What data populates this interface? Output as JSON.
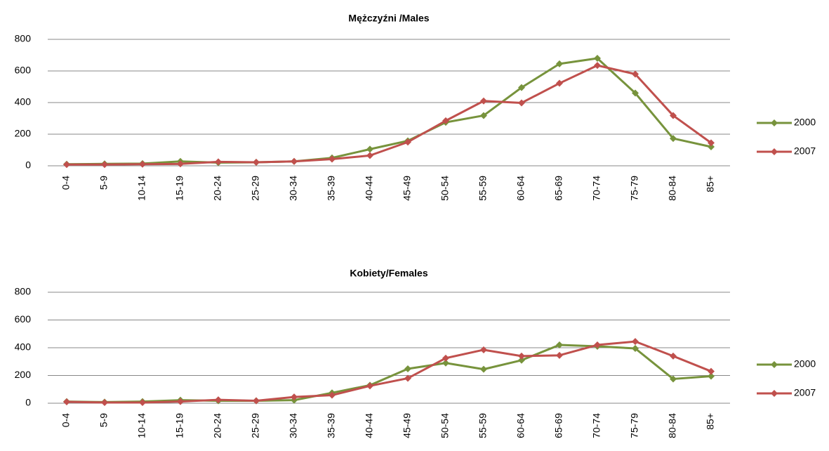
{
  "chart_data": [
    {
      "type": "line",
      "title": "Mężczyźni /Males",
      "categories": [
        "0-4",
        "5-9",
        "10-14",
        "15-19",
        "20-24",
        "25-29",
        "30-34",
        "35-39",
        "40-44",
        "45-49",
        "50-54",
        "55-59",
        "60-64",
        "65-69",
        "70-74",
        "75-79",
        "80-84",
        "85+"
      ],
      "series": [
        {
          "name": "2000",
          "color": "#77933c",
          "values": [
            10,
            12,
            14,
            28,
            20,
            22,
            28,
            50,
            105,
            158,
            275,
            318,
            495,
            645,
            680,
            460,
            173,
            120
          ]
        },
        {
          "name": "2007",
          "color": "#c0504d",
          "values": [
            8,
            8,
            10,
            12,
            25,
            22,
            28,
            42,
            65,
            150,
            285,
            410,
            398,
            522,
            635,
            580,
            318,
            145
          ]
        }
      ],
      "ylim": [
        0,
        800
      ],
      "yticks": [
        0,
        200,
        400,
        600,
        800
      ],
      "grid": true,
      "legend": "right"
    },
    {
      "type": "line",
      "title": "Kobiety/Females",
      "categories": [
        "0-4",
        "5-9",
        "10-14",
        "15-19",
        "20-24",
        "25-29",
        "30-34",
        "35-39",
        "40-44",
        "45-49",
        "50-54",
        "55-59",
        "60-64",
        "65-69",
        "70-74",
        "75-79",
        "80-84",
        "85+"
      ],
      "series": [
        {
          "name": "2000",
          "color": "#77933c",
          "values": [
            12,
            8,
            12,
            22,
            18,
            18,
            22,
            75,
            130,
            248,
            290,
            245,
            310,
            420,
            410,
            395,
            175,
            195
          ]
        },
        {
          "name": "2007",
          "color": "#c0504d",
          "values": [
            10,
            5,
            5,
            12,
            25,
            18,
            45,
            58,
            125,
            180,
            325,
            385,
            340,
            345,
            420,
            445,
            340,
            230
          ]
        }
      ],
      "ylim": [
        0,
        800
      ],
      "yticks": [
        0,
        200,
        400,
        600,
        800
      ],
      "grid": true,
      "legend": "right"
    }
  ]
}
